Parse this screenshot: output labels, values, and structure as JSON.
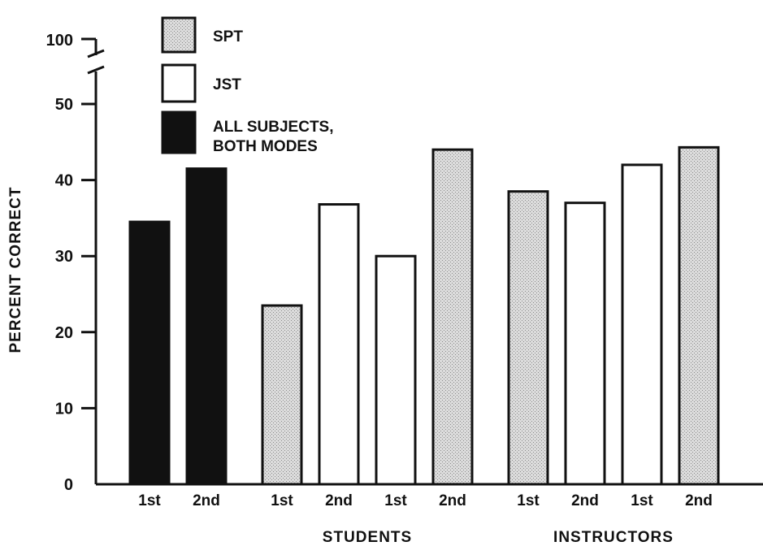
{
  "chart_data": {
    "type": "bar",
    "ylabel": "PERCENT CORRECT",
    "y_ticks": [
      "0",
      "10",
      "20",
      "30",
      "40",
      "50",
      "100"
    ],
    "y_break": "between 50 and 100",
    "ylim": [
      0,
      50
    ],
    "legend": [
      {
        "label": "SPT",
        "fill": "stipple"
      },
      {
        "label": "JST",
        "fill": "white"
      },
      {
        "label": "ALL SUBJECTS,",
        "label2": "BOTH MODES",
        "fill": "black"
      }
    ],
    "groups": [
      {
        "label": "",
        "bars": [
          {
            "x_label": "1st",
            "series": "ALL SUBJECTS, BOTH MODES",
            "value": 34.5
          },
          {
            "x_label": "2nd",
            "series": "ALL SUBJECTS, BOTH MODES",
            "value": 41.5
          }
        ]
      },
      {
        "label": "STUDENTS",
        "bars": [
          {
            "x_label": "1st",
            "series": "SPT",
            "value": 23.5
          },
          {
            "x_label": "2nd",
            "series": "JST",
            "value": 36.8
          },
          {
            "x_label": "1st",
            "series": "JST",
            "value": 30
          },
          {
            "x_label": "2nd",
            "series": "SPT",
            "value": 44
          }
        ]
      },
      {
        "label": "INSTRUCTORS",
        "bars": [
          {
            "x_label": "1st",
            "series": "SPT",
            "value": 38.5
          },
          {
            "x_label": "2nd",
            "series": "JST",
            "value": 37
          },
          {
            "x_label": "1st",
            "series": "JST",
            "value": 42
          },
          {
            "x_label": "2nd",
            "series": "SPT",
            "value": 44.3
          }
        ]
      }
    ]
  }
}
